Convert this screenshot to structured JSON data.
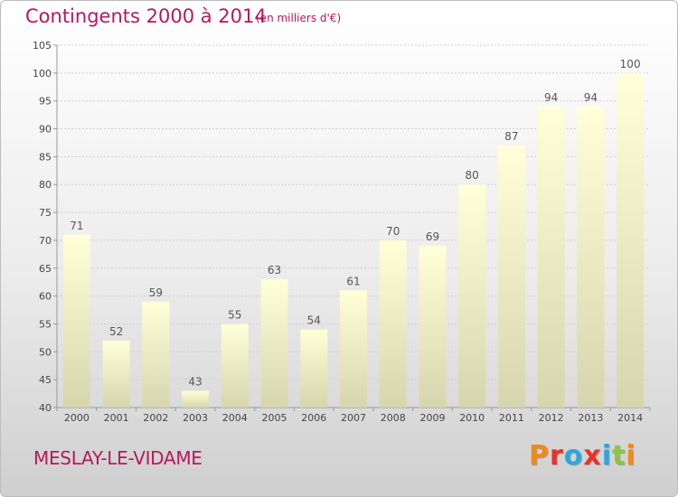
{
  "header": {
    "title": "Contingents 2000 à 2014",
    "subtitle": "(en milliers d'€)"
  },
  "footer": {
    "town": "MESLAY-LE-VIDAME",
    "brand": "Proxiti"
  },
  "colors": {
    "accent": "#b5195e",
    "bar_top": "#ffffd8",
    "bar_bottom": "#d6d6ae",
    "grid": "#cfcfcf",
    "logo_letters": [
      "#f08a1c",
      "#e8322a",
      "#2aa7df",
      "#e8322a",
      "#2aa7df",
      "#8cc63f",
      "#f08a1c"
    ]
  },
  "chart_data": {
    "type": "bar",
    "categories": [
      "2000",
      "2001",
      "2002",
      "2003",
      "2004",
      "2005",
      "2006",
      "2007",
      "2008",
      "2009",
      "2010",
      "2011",
      "2012",
      "2013",
      "2014"
    ],
    "values": [
      71,
      52,
      59,
      43,
      55,
      63,
      54,
      61,
      70,
      69,
      80,
      87,
      94,
      94,
      100
    ],
    "ylim": [
      40,
      105
    ],
    "yticks": [
      40,
      45,
      50,
      55,
      60,
      65,
      70,
      75,
      80,
      85,
      90,
      95,
      100,
      105
    ],
    "grid": true,
    "legend": "none",
    "data_labels": true
  }
}
